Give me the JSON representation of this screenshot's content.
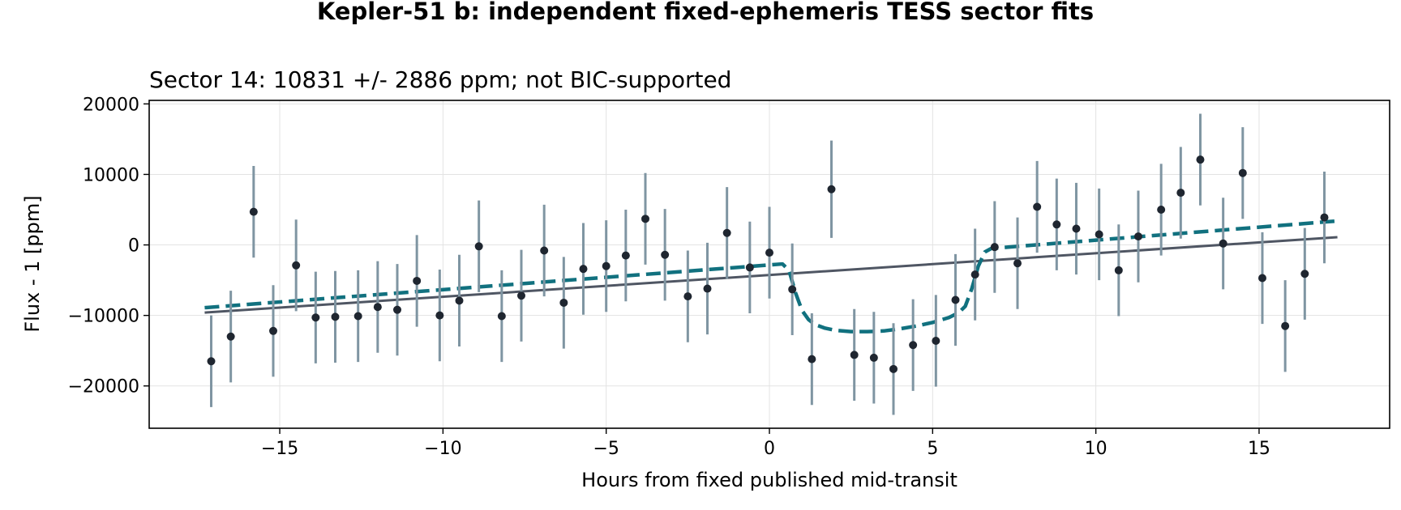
{
  "chart_data": {
    "type": "scatter",
    "suptitle": "Kepler-51 b: independent fixed-ephemeris TESS sector fits",
    "title": "Sector 14: 10831 +/- 2886 ppm; not BIC-supported",
    "xlabel": "Hours from fixed published mid-transit",
    "ylabel": "Flux - 1 [ppm]",
    "xlim": [
      -19,
      19
    ],
    "ylim": [
      -26000,
      20500
    ],
    "xticks": [
      -15,
      -10,
      -5,
      0,
      5,
      10,
      15
    ],
    "yticks": [
      -20000,
      -10000,
      0,
      10000,
      20000
    ],
    "grid": true,
    "colors": {
      "points": "#1f2630",
      "errorbars": "#7f95a2",
      "baseline": "#4f5663",
      "model": "#11717f"
    },
    "points": [
      {
        "x": -17.1,
        "y": -16500,
        "err": 6500
      },
      {
        "x": -16.5,
        "y": -13000,
        "err": 6500
      },
      {
        "x": -15.8,
        "y": 4700,
        "err": 6500
      },
      {
        "x": -15.2,
        "y": -12200,
        "err": 6500
      },
      {
        "x": -14.5,
        "y": -2900,
        "err": 6500
      },
      {
        "x": -13.9,
        "y": -10300,
        "err": 6500
      },
      {
        "x": -13.3,
        "y": -10200,
        "err": 6500
      },
      {
        "x": -12.6,
        "y": -10100,
        "err": 6500
      },
      {
        "x": -12.0,
        "y": -8800,
        "err": 6500
      },
      {
        "x": -11.4,
        "y": -9200,
        "err": 6500
      },
      {
        "x": -10.8,
        "y": -5100,
        "err": 6500
      },
      {
        "x": -10.1,
        "y": -10000,
        "err": 6500
      },
      {
        "x": -9.5,
        "y": -7900,
        "err": 6500
      },
      {
        "x": -8.9,
        "y": -200,
        "err": 6500
      },
      {
        "x": -8.2,
        "y": -10100,
        "err": 6500
      },
      {
        "x": -7.6,
        "y": -7200,
        "err": 6500
      },
      {
        "x": -6.9,
        "y": -800,
        "err": 6500
      },
      {
        "x": -6.3,
        "y": -8200,
        "err": 6500
      },
      {
        "x": -5.7,
        "y": -3400,
        "err": 6500
      },
      {
        "x": -5.0,
        "y": -3000,
        "err": 6500
      },
      {
        "x": -4.4,
        "y": -1500,
        "err": 6500
      },
      {
        "x": -3.8,
        "y": 3700,
        "err": 6500
      },
      {
        "x": -3.2,
        "y": -1400,
        "err": 6500
      },
      {
        "x": -2.5,
        "y": -7300,
        "err": 6500
      },
      {
        "x": -1.9,
        "y": -6200,
        "err": 6500
      },
      {
        "x": -1.3,
        "y": 1700,
        "err": 6500
      },
      {
        "x": -0.6,
        "y": -3200,
        "err": 6500
      },
      {
        "x": 0.0,
        "y": -1100,
        "err": 6500
      },
      {
        "x": 0.7,
        "y": -6300,
        "err": 6500
      },
      {
        "x": 1.3,
        "y": -16200,
        "err": 6500
      },
      {
        "x": 1.9,
        "y": 7900,
        "err": 6900
      },
      {
        "x": 2.6,
        "y": -15600,
        "err": 6500
      },
      {
        "x": 3.2,
        "y": -16000,
        "err": 6500
      },
      {
        "x": 3.8,
        "y": -17600,
        "err": 6500
      },
      {
        "x": 4.4,
        "y": -14200,
        "err": 6500
      },
      {
        "x": 5.1,
        "y": -13600,
        "err": 6500
      },
      {
        "x": 5.7,
        "y": -7800,
        "err": 6500
      },
      {
        "x": 6.3,
        "y": -4200,
        "err": 6500
      },
      {
        "x": 6.9,
        "y": -300,
        "err": 6500
      },
      {
        "x": 7.6,
        "y": -2600,
        "err": 6500
      },
      {
        "x": 8.2,
        "y": 5400,
        "err": 6500
      },
      {
        "x": 8.8,
        "y": 2900,
        "err": 6500
      },
      {
        "x": 9.4,
        "y": 2300,
        "err": 6500
      },
      {
        "x": 10.1,
        "y": 1500,
        "err": 6500
      },
      {
        "x": 10.7,
        "y": -3600,
        "err": 6500
      },
      {
        "x": 11.3,
        "y": 1200,
        "err": 6500
      },
      {
        "x": 12.0,
        "y": 5000,
        "err": 6500
      },
      {
        "x": 12.6,
        "y": 7400,
        "err": 6500
      },
      {
        "x": 13.2,
        "y": 12100,
        "err": 6500
      },
      {
        "x": 13.9,
        "y": 200,
        "err": 6500
      },
      {
        "x": 14.5,
        "y": 10200,
        "err": 6500
      },
      {
        "x": 15.1,
        "y": -4700,
        "err": 6500
      },
      {
        "x": 15.8,
        "y": -11500,
        "err": 6500
      },
      {
        "x": 16.4,
        "y": -4100,
        "err": 6500
      },
      {
        "x": 17.0,
        "y": 3900,
        "err": 6500
      }
    ],
    "baseline_line": {
      "x": [
        -17.3,
        17.4
      ],
      "y": [
        -9600,
        1100
      ]
    },
    "transit_model": {
      "x": [
        -17.3,
        0.4,
        0.6,
        0.8,
        1.0,
        1.2,
        1.4,
        1.7,
        2.0,
        2.5,
        3.0,
        3.5,
        4.0,
        4.5,
        5.0,
        5.5,
        5.8,
        6.0,
        6.2,
        6.4,
        6.6,
        6.8,
        17.4
      ],
      "y": [
        -8900,
        -2700,
        -3600,
        -6800,
        -9300,
        -10600,
        -11300,
        -11800,
        -12100,
        -12300,
        -12300,
        -12200,
        -11900,
        -11500,
        -11000,
        -10300,
        -9600,
        -8700,
        -6200,
        -3000,
        -1000,
        -500,
        3400
      ]
    }
  }
}
